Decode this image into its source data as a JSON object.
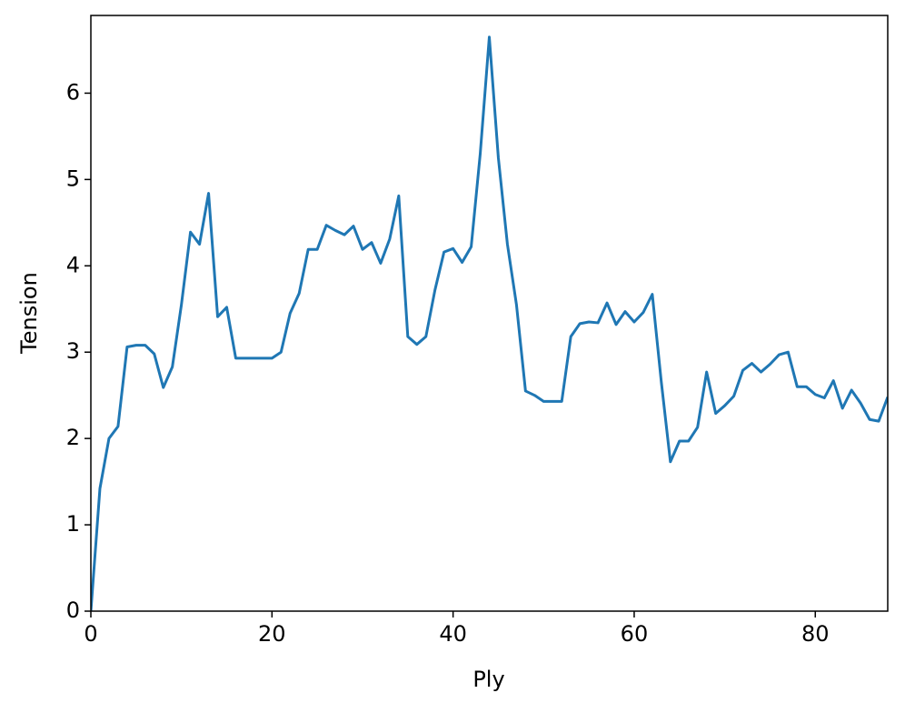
{
  "chart_data": {
    "type": "line",
    "x_label": "Ply",
    "y_label": "Tension",
    "x": [
      0,
      1,
      2,
      3,
      4,
      5,
      6,
      7,
      8,
      9,
      10,
      11,
      12,
      13,
      14,
      15,
      16,
      17,
      18,
      19,
      20,
      21,
      22,
      23,
      24,
      25,
      26,
      27,
      28,
      29,
      30,
      31,
      32,
      33,
      34,
      35,
      36,
      37,
      38,
      39,
      40,
      41,
      42,
      43,
      44,
      45,
      46,
      47,
      48,
      49,
      50,
      51,
      52,
      53,
      54,
      55,
      56,
      57,
      58,
      59,
      60,
      61,
      62,
      63,
      64,
      65,
      66,
      67,
      68,
      69,
      70,
      71,
      72,
      73,
      74,
      75,
      76,
      77,
      78,
      79,
      80,
      81,
      82,
      83,
      84,
      85,
      86,
      87,
      88
    ],
    "series": [
      {
        "color": "#1f77b4",
        "values": [
          0,
          1.42,
          2.0,
          2.14,
          3.06,
          3.08,
          3.08,
          2.98,
          2.59,
          2.83,
          3.55,
          4.39,
          4.25,
          4.84,
          3.41,
          3.52,
          2.93,
          2.93,
          2.93,
          2.93,
          2.93,
          3.0,
          3.45,
          3.68,
          4.19,
          4.19,
          4.47,
          4.41,
          4.36,
          4.46,
          4.19,
          4.27,
          4.03,
          4.31,
          4.81,
          3.18,
          3.09,
          3.18,
          3.72,
          4.16,
          4.2,
          4.04,
          4.22,
          5.3,
          6.65,
          5.25,
          4.25,
          3.55,
          2.55,
          2.5,
          2.43,
          2.43,
          2.43,
          3.18,
          3.33,
          3.35,
          3.34,
          3.57,
          3.32,
          3.47,
          3.35,
          3.46,
          3.67,
          2.65,
          1.73,
          1.97,
          1.97,
          2.13,
          2.77,
          2.29,
          2.38,
          2.49,
          2.79,
          2.87,
          2.77,
          2.86,
          2.97,
          3.0,
          2.6,
          2.6,
          2.51,
          2.47,
          2.67,
          2.35,
          2.56,
          2.41,
          2.22,
          2.2,
          2.48
        ]
      }
    ],
    "xlim": [
      0,
      88
    ],
    "ylim": [
      0,
      6.9
    ],
    "xticks": [
      0,
      20,
      40,
      60,
      80
    ],
    "yticks": [
      0,
      1,
      2,
      3,
      4,
      5,
      6
    ]
  }
}
